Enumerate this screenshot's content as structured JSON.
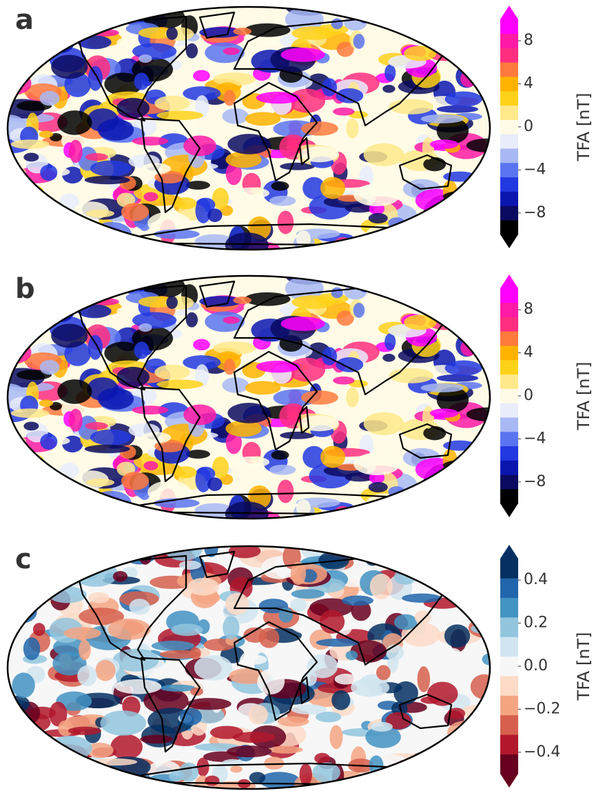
{
  "chart_data": [
    {
      "type": "map",
      "panel_label": "a",
      "colorbar_label": "TFA [nT]",
      "clim": [
        -10,
        10
      ],
      "cticks": [
        8,
        4,
        0,
        {
          "value": -4,
          "label": "−4"
        },
        {
          "value": -8,
          "label": "−8"
        }
      ],
      "colormap": [
        "#000000",
        "#0a0a60",
        "#0b16b0",
        "#2238e0",
        "#5a74f0",
        "#a8b8f4",
        "#e8ecfb",
        "#fffbe6",
        "#ffe98a",
        "#ffd21a",
        "#ffb300",
        "#ff7a3d",
        "#ff2e80",
        "#ff1aa6",
        "#ff00ff"
      ]
    },
    {
      "type": "map",
      "panel_label": "b",
      "colorbar_label": "TFA [nT]",
      "clim": [
        -10,
        10
      ],
      "cticks": [
        8,
        4,
        0,
        {
          "value": -4,
          "label": "−4"
        },
        {
          "value": -8,
          "label": "−8"
        }
      ],
      "colormap": [
        "#000000",
        "#0a0a60",
        "#0b16b0",
        "#2238e0",
        "#5a74f0",
        "#a8b8f4",
        "#e8ecfb",
        "#fffbe6",
        "#ffe98a",
        "#ffd21a",
        "#ffb300",
        "#ff7a3d",
        "#ff2e80",
        "#ff1aa6",
        "#ff00ff"
      ]
    },
    {
      "type": "map",
      "panel_label": "c",
      "colorbar_label": "TFA [nT]",
      "clim": [
        -0.5,
        0.5
      ],
      "cticks": [
        0.4,
        0.2,
        {
          "value": 0,
          "label": "0.0"
        },
        {
          "value": -0.2,
          "label": "−0.2"
        },
        {
          "value": -0.4,
          "label": "−0.4"
        }
      ],
      "colormap": [
        "#67001f",
        "#b2182b",
        "#d6604d",
        "#f4a582",
        "#fddbc7",
        "#f7f7f7",
        "#d1e5f0",
        "#92c5de",
        "#4393c3",
        "#2166ac",
        "#053061"
      ]
    }
  ]
}
